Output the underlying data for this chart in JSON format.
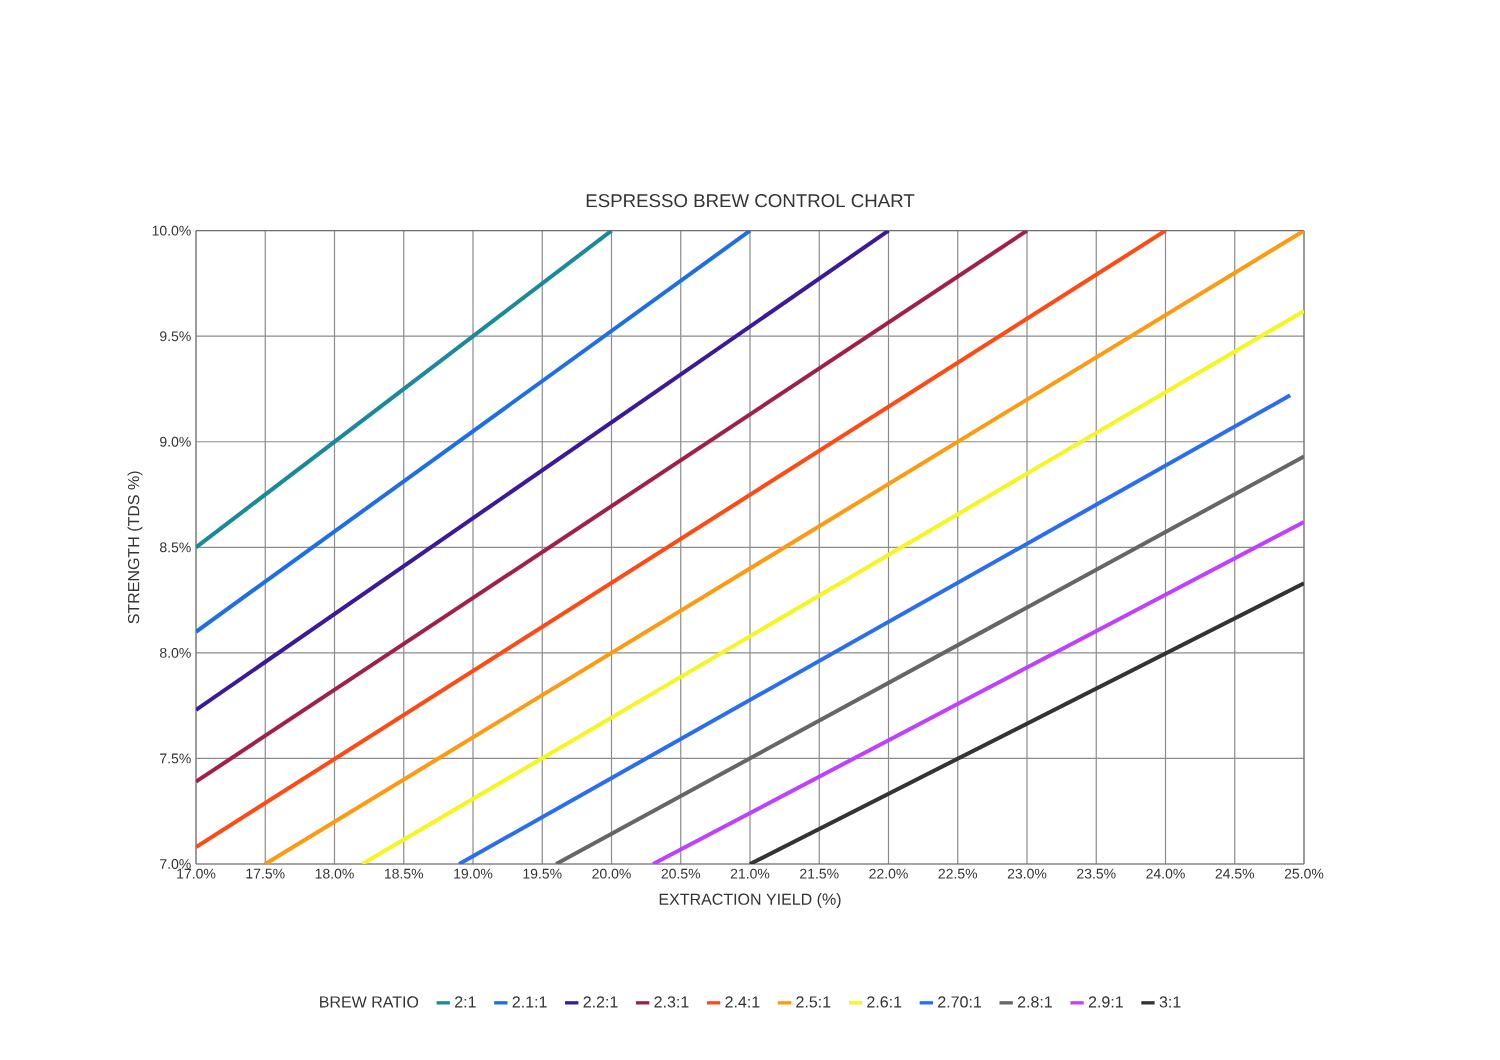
{
  "chart_data": {
    "type": "line",
    "title": "ESPRESSO BREW CONTROL CHART",
    "xlabel": "EXTRACTION YIELD (%)",
    "ylabel": "STRENGTH (TDS %)",
    "legend_title": "BREW RATIO",
    "legend": "bottom",
    "grid": true,
    "xlim": [
      17,
      25
    ],
    "ylim": [
      7,
      10
    ],
    "xticks": [
      {
        "value": 17,
        "label": "17.0%"
      },
      {
        "value": 17.5,
        "label": "17.5%"
      },
      {
        "value": 18,
        "label": "18.0%"
      },
      {
        "value": 18.5,
        "label": "18.5%"
      },
      {
        "value": 19,
        "label": "19.0%"
      },
      {
        "value": 19.5,
        "label": "19.5%"
      },
      {
        "value": 20,
        "label": "20.0%"
      },
      {
        "value": 20.5,
        "label": "20.5%"
      },
      {
        "value": 21,
        "label": "21.0%"
      },
      {
        "value": 21.5,
        "label": "21.5%"
      },
      {
        "value": 22,
        "label": "22.0%"
      },
      {
        "value": 22.5,
        "label": "22.5%"
      },
      {
        "value": 23,
        "label": "23.0%"
      },
      {
        "value": 23.5,
        "label": "23.5%"
      },
      {
        "value": 24,
        "label": "24.0%"
      },
      {
        "value": 24.5,
        "label": "24.5%"
      },
      {
        "value": 25,
        "label": "25.0%"
      }
    ],
    "yticks": [
      {
        "value": 7,
        "label": "7.0%"
      },
      {
        "value": 7.5,
        "label": "7.5%"
      },
      {
        "value": 8,
        "label": "8.0%"
      },
      {
        "value": 8.5,
        "label": "8.5%"
      },
      {
        "value": 9,
        "label": "9.0%"
      },
      {
        "value": 9.5,
        "label": "9.5%"
      },
      {
        "value": 10,
        "label": "10.0%"
      }
    ],
    "series": [
      {
        "name": "2:1",
        "color": "#1a8a9a",
        "x": [
          17,
          20
        ],
        "values": [
          8.5,
          10
        ]
      },
      {
        "name": "2.1:1",
        "color": "#1e6fe6",
        "x": [
          17,
          21
        ],
        "values": [
          8.1,
          10
        ]
      },
      {
        "name": "2.2:1",
        "color": "#3a1a9a",
        "x": [
          17,
          22
        ],
        "values": [
          7.73,
          10
        ]
      },
      {
        "name": "2.3:1",
        "color": "#a0204a",
        "x": [
          17,
          23
        ],
        "values": [
          7.39,
          10
        ]
      },
      {
        "name": "2.4:1",
        "color": "#ff4a14",
        "x": [
          17,
          24
        ],
        "values": [
          7.08,
          10
        ]
      },
      {
        "name": "2.5:1",
        "color": "#ff9a10",
        "x": [
          17.5,
          25
        ],
        "values": [
          7,
          10
        ]
      },
      {
        "name": "2.6:1",
        "color": "#f5f520",
        "x": [
          18.2,
          25
        ],
        "values": [
          7,
          9.62
        ]
      },
      {
        "name": "2.70:1",
        "color": "#2a6ef0",
        "x": [
          18.9,
          24.9
        ],
        "values": [
          7,
          9.22
        ]
      },
      {
        "name": "2.8:1",
        "color": "#666666",
        "x": [
          19.6,
          25
        ],
        "values": [
          7,
          8.93
        ]
      },
      {
        "name": "2.9:1",
        "color": "#c040ff",
        "x": [
          20.3,
          25
        ],
        "values": [
          7,
          8.62
        ]
      },
      {
        "name": "3:1",
        "color": "#333333",
        "x": [
          21,
          25
        ],
        "values": [
          7,
          8.33
        ]
      }
    ]
  }
}
